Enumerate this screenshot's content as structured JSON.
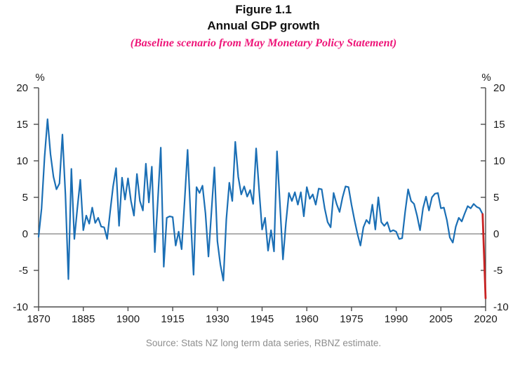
{
  "header": {
    "figure_label": "Figure 1.1",
    "title": "Annual GDP growth",
    "subtitle": "(Baseline scenario from May Monetary Policy Statement)"
  },
  "footer": {
    "source": "Source: Stats NZ long term data series, RBNZ estimate."
  },
  "colors": {
    "history_line": "#1b6fb5",
    "forecast_line": "#c92323",
    "subtitle_text": "#ee1478",
    "axis": "#4d4d4d",
    "zero_line": "#808080",
    "tick_label": "#1a1a1a",
    "source_text": "#8e8e8e"
  },
  "chart_data": {
    "type": "line",
    "title": "Annual GDP growth",
    "subtitle": "(Baseline scenario from May Monetary Policy Statement)",
    "ylabel": "%",
    "ylabel_right": "%",
    "xlim": [
      1870,
      2020
    ],
    "ylim": [
      -10,
      20
    ],
    "yticks": [
      20,
      15,
      10,
      5,
      0,
      -5,
      -10
    ],
    "xticks": [
      1870,
      1885,
      1900,
      1915,
      1930,
      1945,
      1960,
      1975,
      1990,
      2005,
      2020
    ],
    "grid": false,
    "zero_line": true,
    "legend": "none",
    "series": [
      {
        "name": "Annual GDP growth (history)",
        "color_key": "history_line",
        "start_year": 1870,
        "values": [
          -0.4,
          3.5,
          10.5,
          15.7,
          10.9,
          7.8,
          6.1,
          6.9,
          13.6,
          5.4,
          -6.2,
          8.9,
          -0.7,
          3.5,
          7.4,
          0.5,
          2.5,
          1.4,
          3.6,
          1.5,
          2.2,
          1.0,
          0.9,
          -0.7,
          3.0,
          6.5,
          9.0,
          1.1,
          7.7,
          4.7,
          7.6,
          4.5,
          2.5,
          8.2,
          4.5,
          3.2,
          9.6,
          4.3,
          9.2,
          -2.5,
          4.5,
          11.8,
          -4.5,
          2.2,
          2.4,
          2.3,
          -1.6,
          0.3,
          -2.1,
          4.5,
          11.5,
          2.5,
          -5.6,
          6.4,
          5.6,
          6.6,
          2.8,
          -3.1,
          3.0,
          9.1,
          -1.0,
          -4.2,
          -6.4,
          2.0,
          7.0,
          4.5,
          12.6,
          7.8,
          5.4,
          6.5,
          5.1,
          6.0,
          4.1,
          11.7,
          6.0,
          0.6,
          2.2,
          -2.3,
          0.5,
          -2.4,
          11.3,
          4.0,
          -3.5,
          1.5,
          5.6,
          4.5,
          5.7,
          4.0,
          5.7,
          2.4,
          6.4,
          4.8,
          5.4,
          4.0,
          6.2,
          6.1,
          3.5,
          1.6,
          0.9,
          5.6,
          4.1,
          3.0,
          5.0,
          6.5,
          6.4,
          4.0,
          1.9,
          0.0,
          -1.6,
          0.9,
          1.9,
          1.4,
          4.0,
          0.6,
          5.0,
          1.6,
          1.1,
          1.6,
          0.3,
          0.5,
          0.3,
          -0.7,
          -0.6,
          3.0,
          6.1,
          4.5,
          4.1,
          2.5,
          0.5,
          3.5,
          5.1,
          3.2,
          5.0,
          5.5,
          5.6,
          3.5,
          3.6,
          1.9,
          -0.5,
          -1.2,
          1.0,
          2.2,
          1.7,
          2.8,
          3.8,
          3.5,
          4.1,
          3.7,
          3.5,
          2.7
        ]
      },
      {
        "name": "Baseline scenario (RBNZ estimate)",
        "color_key": "forecast_line",
        "x": [
          2019,
          2020
        ],
        "values": [
          2.7,
          -8.8
        ]
      }
    ]
  }
}
